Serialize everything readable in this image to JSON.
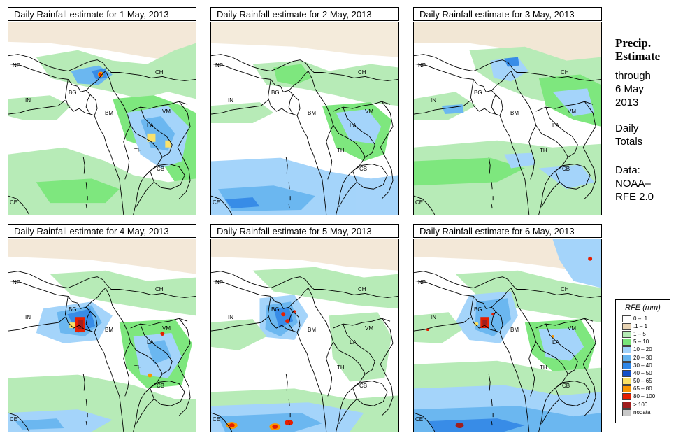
{
  "panels": [
    {
      "title": "Daily Rainfall estimate for  1 May, 2013"
    },
    {
      "title": "Daily Rainfall estimate for  2 May, 2013"
    },
    {
      "title": "Daily Rainfall estimate for  3 May, 2013"
    },
    {
      "title": "Daily Rainfall estimate for  4 May, 2013"
    },
    {
      "title": "Daily Rainfall estimate for  5 May, 2013"
    },
    {
      "title": "Daily Rainfall estimate for  6 May, 2013"
    }
  ],
  "country_labels": {
    "np": "NP",
    "ch": "CH",
    "in": "IN",
    "bg": "BG",
    "bm": "BM",
    "vm": "VM",
    "la": "LA",
    "th": "TH",
    "cb": "CB",
    "ce": "CE"
  },
  "sidebar": {
    "title_line1": "Precip.",
    "title_line2": "Estimate",
    "through": "through",
    "date_line1": "6 May",
    "date_line2": "2013",
    "type_line1": "Daily",
    "type_line2": "Totals",
    "data_line1": "Data:",
    "data_line2": "NOAA–",
    "data_line3": "RFE 2.0"
  },
  "legend": {
    "title": "RFE (mm)",
    "items": [
      {
        "label": "0 – .1",
        "color": "#ffffff"
      },
      {
        "label": ".1 – 1",
        "color": "#e8d4b4"
      },
      {
        "label": "1 – 5",
        "color": "#b4eab4"
      },
      {
        "label": "5 – 10",
        "color": "#78e678"
      },
      {
        "label": "10 – 20",
        "color": "#a0d2fa"
      },
      {
        "label": "20 – 30",
        "color": "#64b4f0"
      },
      {
        "label": "30 – 40",
        "color": "#2e86e6"
      },
      {
        "label": "40 – 50",
        "color": "#1450c8"
      },
      {
        "label": "50 – 65",
        "color": "#fae164"
      },
      {
        "label": "65 – 80",
        "color": "#fa9600"
      },
      {
        "label": "80 – 100",
        "color": "#e61e00"
      },
      {
        "label": "> 100",
        "color": "#a01e1e"
      },
      {
        "label": "nodata",
        "color": "#c8c8c8"
      }
    ]
  }
}
